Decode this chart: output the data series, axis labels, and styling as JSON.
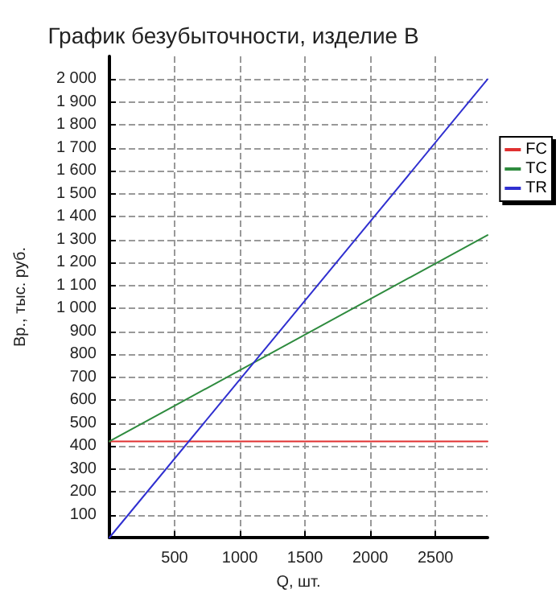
{
  "chart_data": {
    "type": "line",
    "title": "График безубыточности, изделие B",
    "xlabel": "Q, шт.",
    "ylabel": "Вр., тыс. руб.",
    "x": [
      0,
      2900
    ],
    "series": [
      {
        "name": "FC",
        "color": "#e03030",
        "values": [
          420,
          420
        ]
      },
      {
        "name": "TC",
        "color": "#2e8b3e",
        "values": [
          420,
          1320
        ]
      },
      {
        "name": "TR",
        "color": "#3030d0",
        "values": [
          0,
          2000
        ]
      }
    ],
    "xlim": [
      0,
      2900
    ],
    "xticks": [
      500,
      1000,
      1500,
      2000,
      2500
    ],
    "ylim": [
      0,
      2100
    ],
    "yticks": [
      100,
      200,
      300,
      400,
      500,
      600,
      700,
      800,
      900,
      {
        "value": 1000,
        "label": "1 000"
      },
      {
        "value": 1100,
        "label": "1 100"
      },
      {
        "value": 1200,
        "label": "1 200"
      },
      {
        "value": 1300,
        "label": "1 300"
      },
      {
        "value": 1400,
        "label": "1 400"
      },
      {
        "value": 1500,
        "label": "1 500"
      },
      {
        "value": 1600,
        "label": "1 600"
      },
      {
        "value": 1700,
        "label": "1 700"
      },
      {
        "value": 1800,
        "label": "1 800"
      },
      {
        "value": 1900,
        "label": "1 900"
      },
      {
        "value": 2000,
        "label": "2 000"
      }
    ],
    "grid": true,
    "legend": "right",
    "marker": "none",
    "line_style": "solid"
  }
}
